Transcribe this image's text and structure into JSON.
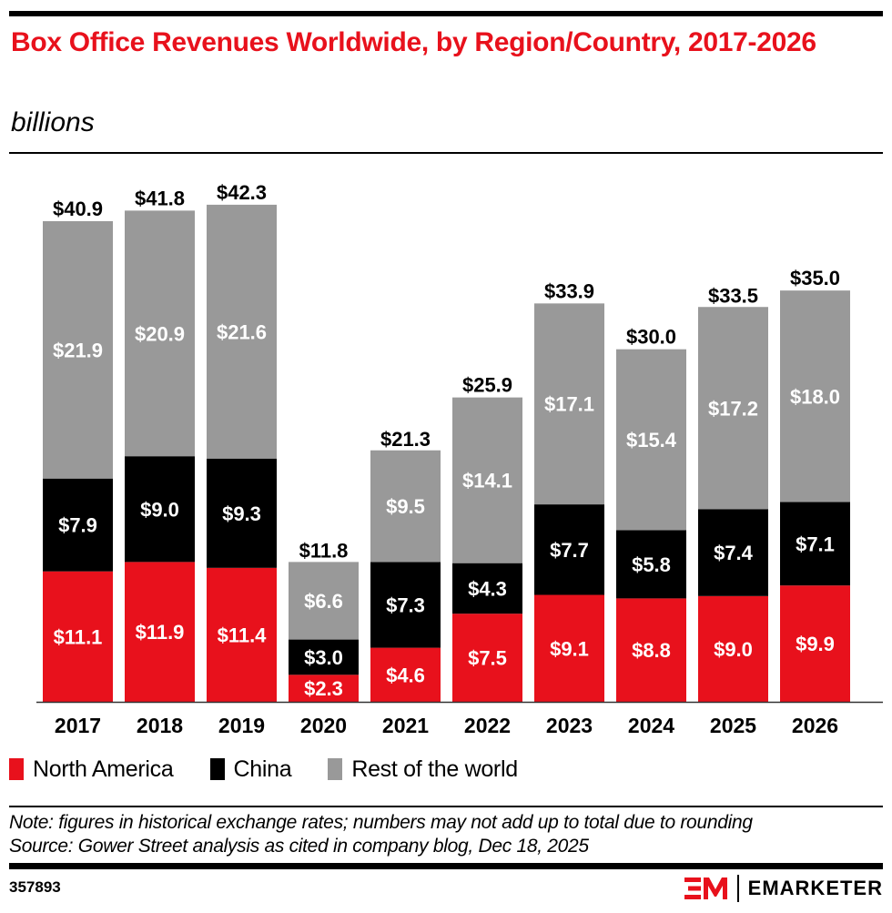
{
  "header": {
    "title": "Box Office Revenues Worldwide, by Region/Country, 2017-2026",
    "subtitle": "billions"
  },
  "legend": [
    {
      "label": "North America",
      "color": "#e8111c"
    },
    {
      "label": "China",
      "color": "#000000"
    },
    {
      "label": "Rest of the world",
      "color": "#999999"
    }
  ],
  "footer": {
    "note": "Note: figures in historical exchange rates; numbers may not add up to total due to rounding",
    "source": "Source: Gower Street analysis as cited in company blog, Dec 18, 2025",
    "chart_id": "357893",
    "brand": "EMARKETER"
  },
  "chart_data": {
    "type": "bar",
    "stacked": true,
    "title": "Box Office Revenues Worldwide, by Region/Country, 2017-2026",
    "subtitle": "billions",
    "xlabel": "",
    "ylabel": "",
    "categories": [
      "2017",
      "2018",
      "2019",
      "2020",
      "2021",
      "2022",
      "2023",
      "2024",
      "2025",
      "2026"
    ],
    "series": [
      {
        "name": "North America",
        "color": "#e8111c",
        "label_color": "#ffffff",
        "values": [
          11.1,
          11.9,
          11.4,
          2.3,
          4.6,
          7.5,
          9.1,
          8.8,
          9.0,
          9.9
        ]
      },
      {
        "name": "China",
        "color": "#000000",
        "label_color": "#ffffff",
        "values": [
          7.9,
          9.0,
          9.3,
          3.0,
          7.3,
          4.3,
          7.7,
          5.8,
          7.4,
          7.1
        ]
      },
      {
        "name": "Rest of the world",
        "color": "#999999",
        "label_color": "#ffffff",
        "values": [
          21.9,
          20.9,
          21.6,
          6.6,
          9.5,
          14.1,
          17.1,
          15.4,
          17.2,
          18.0
        ]
      }
    ],
    "totals": [
      40.9,
      41.8,
      42.3,
      11.8,
      21.3,
      25.9,
      33.9,
      30.0,
      33.5,
      35.0
    ],
    "value_prefix": "$",
    "ylim": [
      0,
      42.3
    ],
    "grid": false,
    "legend_position": "bottom-left"
  }
}
